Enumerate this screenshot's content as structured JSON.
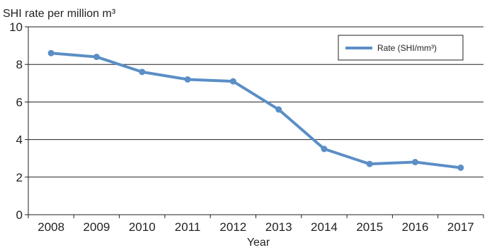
{
  "chart_data": {
    "type": "line",
    "title": "",
    "ylabel": "SHI rate per million m³",
    "xlabel": "Year",
    "ylim": [
      0,
      10
    ],
    "yticks": [
      0,
      2,
      4,
      6,
      8,
      10
    ],
    "grid": true,
    "legend_position": "top-right",
    "categories": [
      "2008",
      "2009",
      "2010",
      "2011",
      "2012",
      "2013",
      "2014",
      "2015",
      "2016",
      "2017"
    ],
    "series": [
      {
        "name": "Rate (SHI/mm³)",
        "color": "#5b8ec6",
        "values": [
          8.6,
          8.4,
          7.6,
          7.2,
          7.1,
          5.6,
          3.5,
          2.7,
          2.8,
          2.5
        ]
      }
    ]
  }
}
